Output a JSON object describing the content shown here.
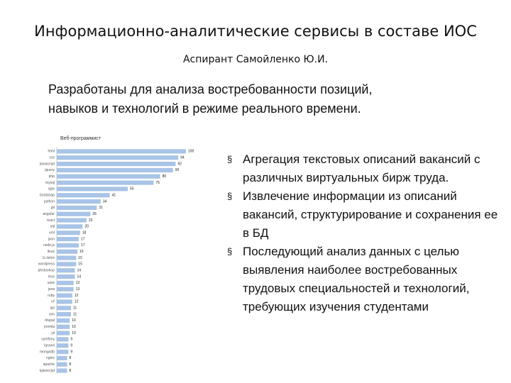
{
  "header": {
    "title": "Информационно-аналитические сервисы в составе ИОС",
    "author": "Аспирант Самойленко Ю.И."
  },
  "intro": [
    "Разработаны для анализа востребованности позиций,",
    "навыков и технологий в режиме реального времени."
  ],
  "bullets": [
    "Агрегация текстовых описаний вакансий с различных виртуальных бирж труда.",
    "Извлечение информации из описаний вакансий, структурирование и сохранения ее в БД",
    "Последующий анализ данных с целью выявления наиболее востребованных трудовых специальностей и технологий, требующих изучения студентами"
  ],
  "chart_data": {
    "type": "bar",
    "orientation": "horizontal",
    "title": "Веб-программист",
    "color": "#a8c4e6",
    "categories": [
      "html",
      "css",
      "javascript",
      "jquery",
      "php",
      "mysql",
      "ajax",
      "bootstrap",
      "python",
      "git",
      "angular",
      "react",
      "sql",
      "xml",
      "json",
      "node.js",
      "linux",
      "1c-bitrix",
      "wordpress",
      "photoshop",
      "less",
      "sass",
      "java",
      "ruby",
      "c#",
      "api",
      "seo",
      "drupal",
      "joomla",
      "yii",
      "symfony",
      "laravel",
      "mongodb",
      "nginx",
      "apache",
      "typescript"
    ],
    "values": [
      100,
      94,
      92,
      90,
      80,
      75,
      55,
      41,
      34,
      31,
      26,
      23,
      20,
      18,
      17,
      17,
      16,
      15,
      15,
      14,
      14,
      13,
      13,
      12,
      12,
      11,
      11,
      10,
      10,
      10,
      9,
      9,
      9,
      8,
      8,
      8
    ],
    "xlim": [
      0,
      100
    ]
  }
}
